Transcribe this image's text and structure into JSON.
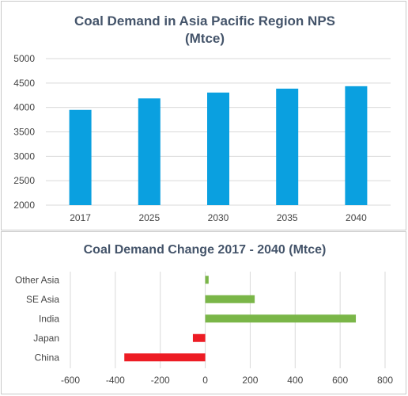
{
  "chart_data": [
    {
      "type": "bar",
      "title_line1": "Coal Demand in Asia Pacific Region NPS",
      "title_line2": "(Mtce)",
      "categories": [
        "2017",
        "2025",
        "2030",
        "2035",
        "2040"
      ],
      "values": [
        3950,
        4185,
        4305,
        4385,
        4435
      ],
      "ylim": [
        2000,
        5000
      ],
      "yticks": [
        "2000",
        "2500",
        "3000",
        "3500",
        "4000",
        "4500",
        "5000"
      ],
      "grid": true,
      "color": "#0aa0e0"
    },
    {
      "type": "bar",
      "orientation": "horizontal",
      "title": "Coal Demand Change 2017 - 2040 (Mtce)",
      "categories": [
        "Other Asia",
        "SE Asia",
        "India",
        "Japan",
        "China"
      ],
      "values": [
        15,
        220,
        670,
        -55,
        -360
      ],
      "xlim": [
        -600,
        800
      ],
      "xticks": [
        "-600",
        "-400",
        "-200",
        "0",
        "200",
        "400",
        "600",
        "800"
      ],
      "grid": true,
      "positive_color": "#7ab648",
      "negative_color": "#ed1c24"
    }
  ]
}
